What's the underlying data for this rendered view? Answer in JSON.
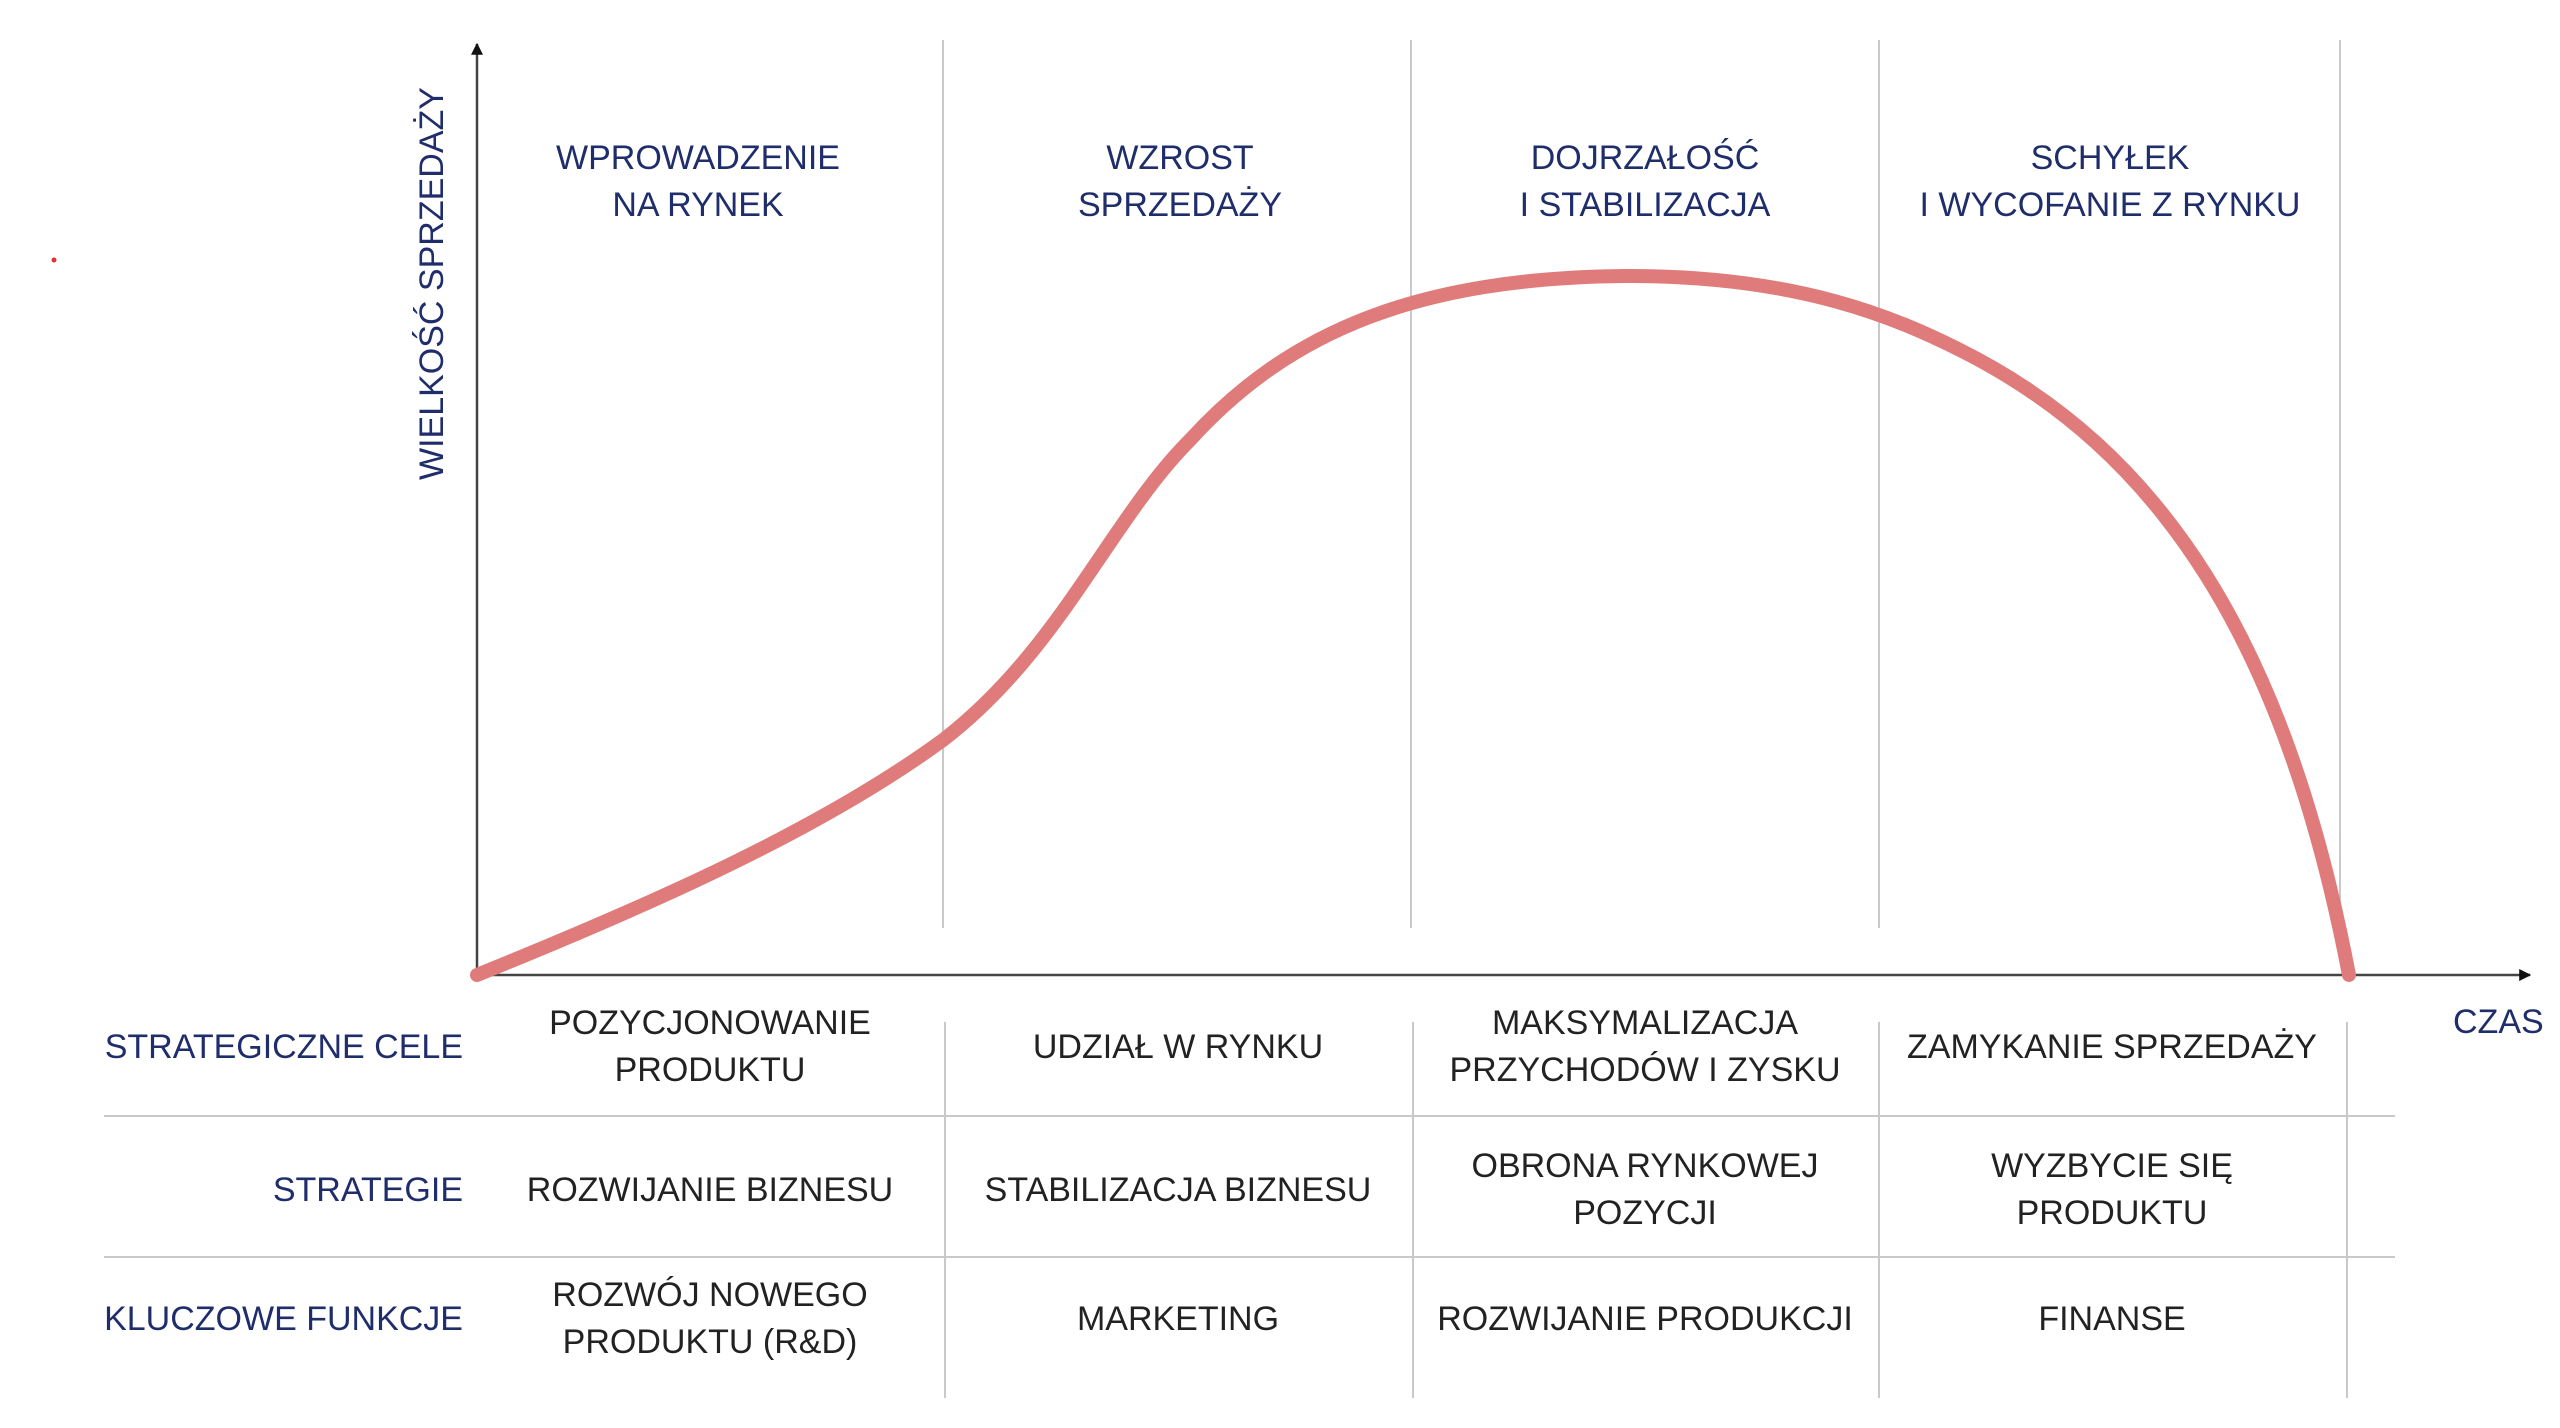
{
  "axes": {
    "y_label": "WIELKOŚĆ  SPRZEDAŻY",
    "x_label": "CZAS"
  },
  "colors": {
    "curve": "#e07b7b",
    "heading_text": "#1f2d6b",
    "body_text": "#222222",
    "gridline": "#c9c9c9"
  },
  "phases": [
    {
      "line1": "WPROWADZENIE",
      "line2": "NA RYNEK"
    },
    {
      "line1": "WZROST",
      "line2": "SPRZEDAŻY"
    },
    {
      "line1": "DOJRZAŁOŚĆ",
      "line2": "I STABILIZACJA"
    },
    {
      "line1": "SCHYŁEK",
      "line2": "I WYCOFANIE Z RYNKU"
    }
  ],
  "rows": [
    {
      "label": "STRATEGICZNE CELE",
      "cells": [
        {
          "line1": "POZYCJONOWANIE",
          "line2": "PRODUKTU"
        },
        {
          "line1": "UDZIAŁ W RYNKU",
          "line2": ""
        },
        {
          "line1": "MAKSYMALIZACJA",
          "line2": "PRZYCHODÓW I ZYSKU"
        },
        {
          "line1": "ZAMYKANIE SPRZEDAŻY",
          "line2": ""
        }
      ]
    },
    {
      "label": "STRATEGIE",
      "cells": [
        {
          "line1": "ROZWIJANIE BIZNESU",
          "line2": ""
        },
        {
          "line1": "STABILIZACJA BIZNESU",
          "line2": ""
        },
        {
          "line1": "OBRONA RYNKOWEJ",
          "line2": "POZYCJI"
        },
        {
          "line1": "WYZBYCIE SIĘ",
          "line2": "PRODUKTU"
        }
      ]
    },
    {
      "label": "KLUCZOWE FUNKCJE",
      "cells": [
        {
          "line1": "ROZWÓJ NOWEGO",
          "line2": "PRODUKTU (R&D)"
        },
        {
          "line1": "MARKETING",
          "line2": ""
        },
        {
          "line1": "ROZWIJANIE PRODUKCJI",
          "line2": ""
        },
        {
          "line1": "FINANSE",
          "line2": ""
        }
      ]
    }
  ]
}
